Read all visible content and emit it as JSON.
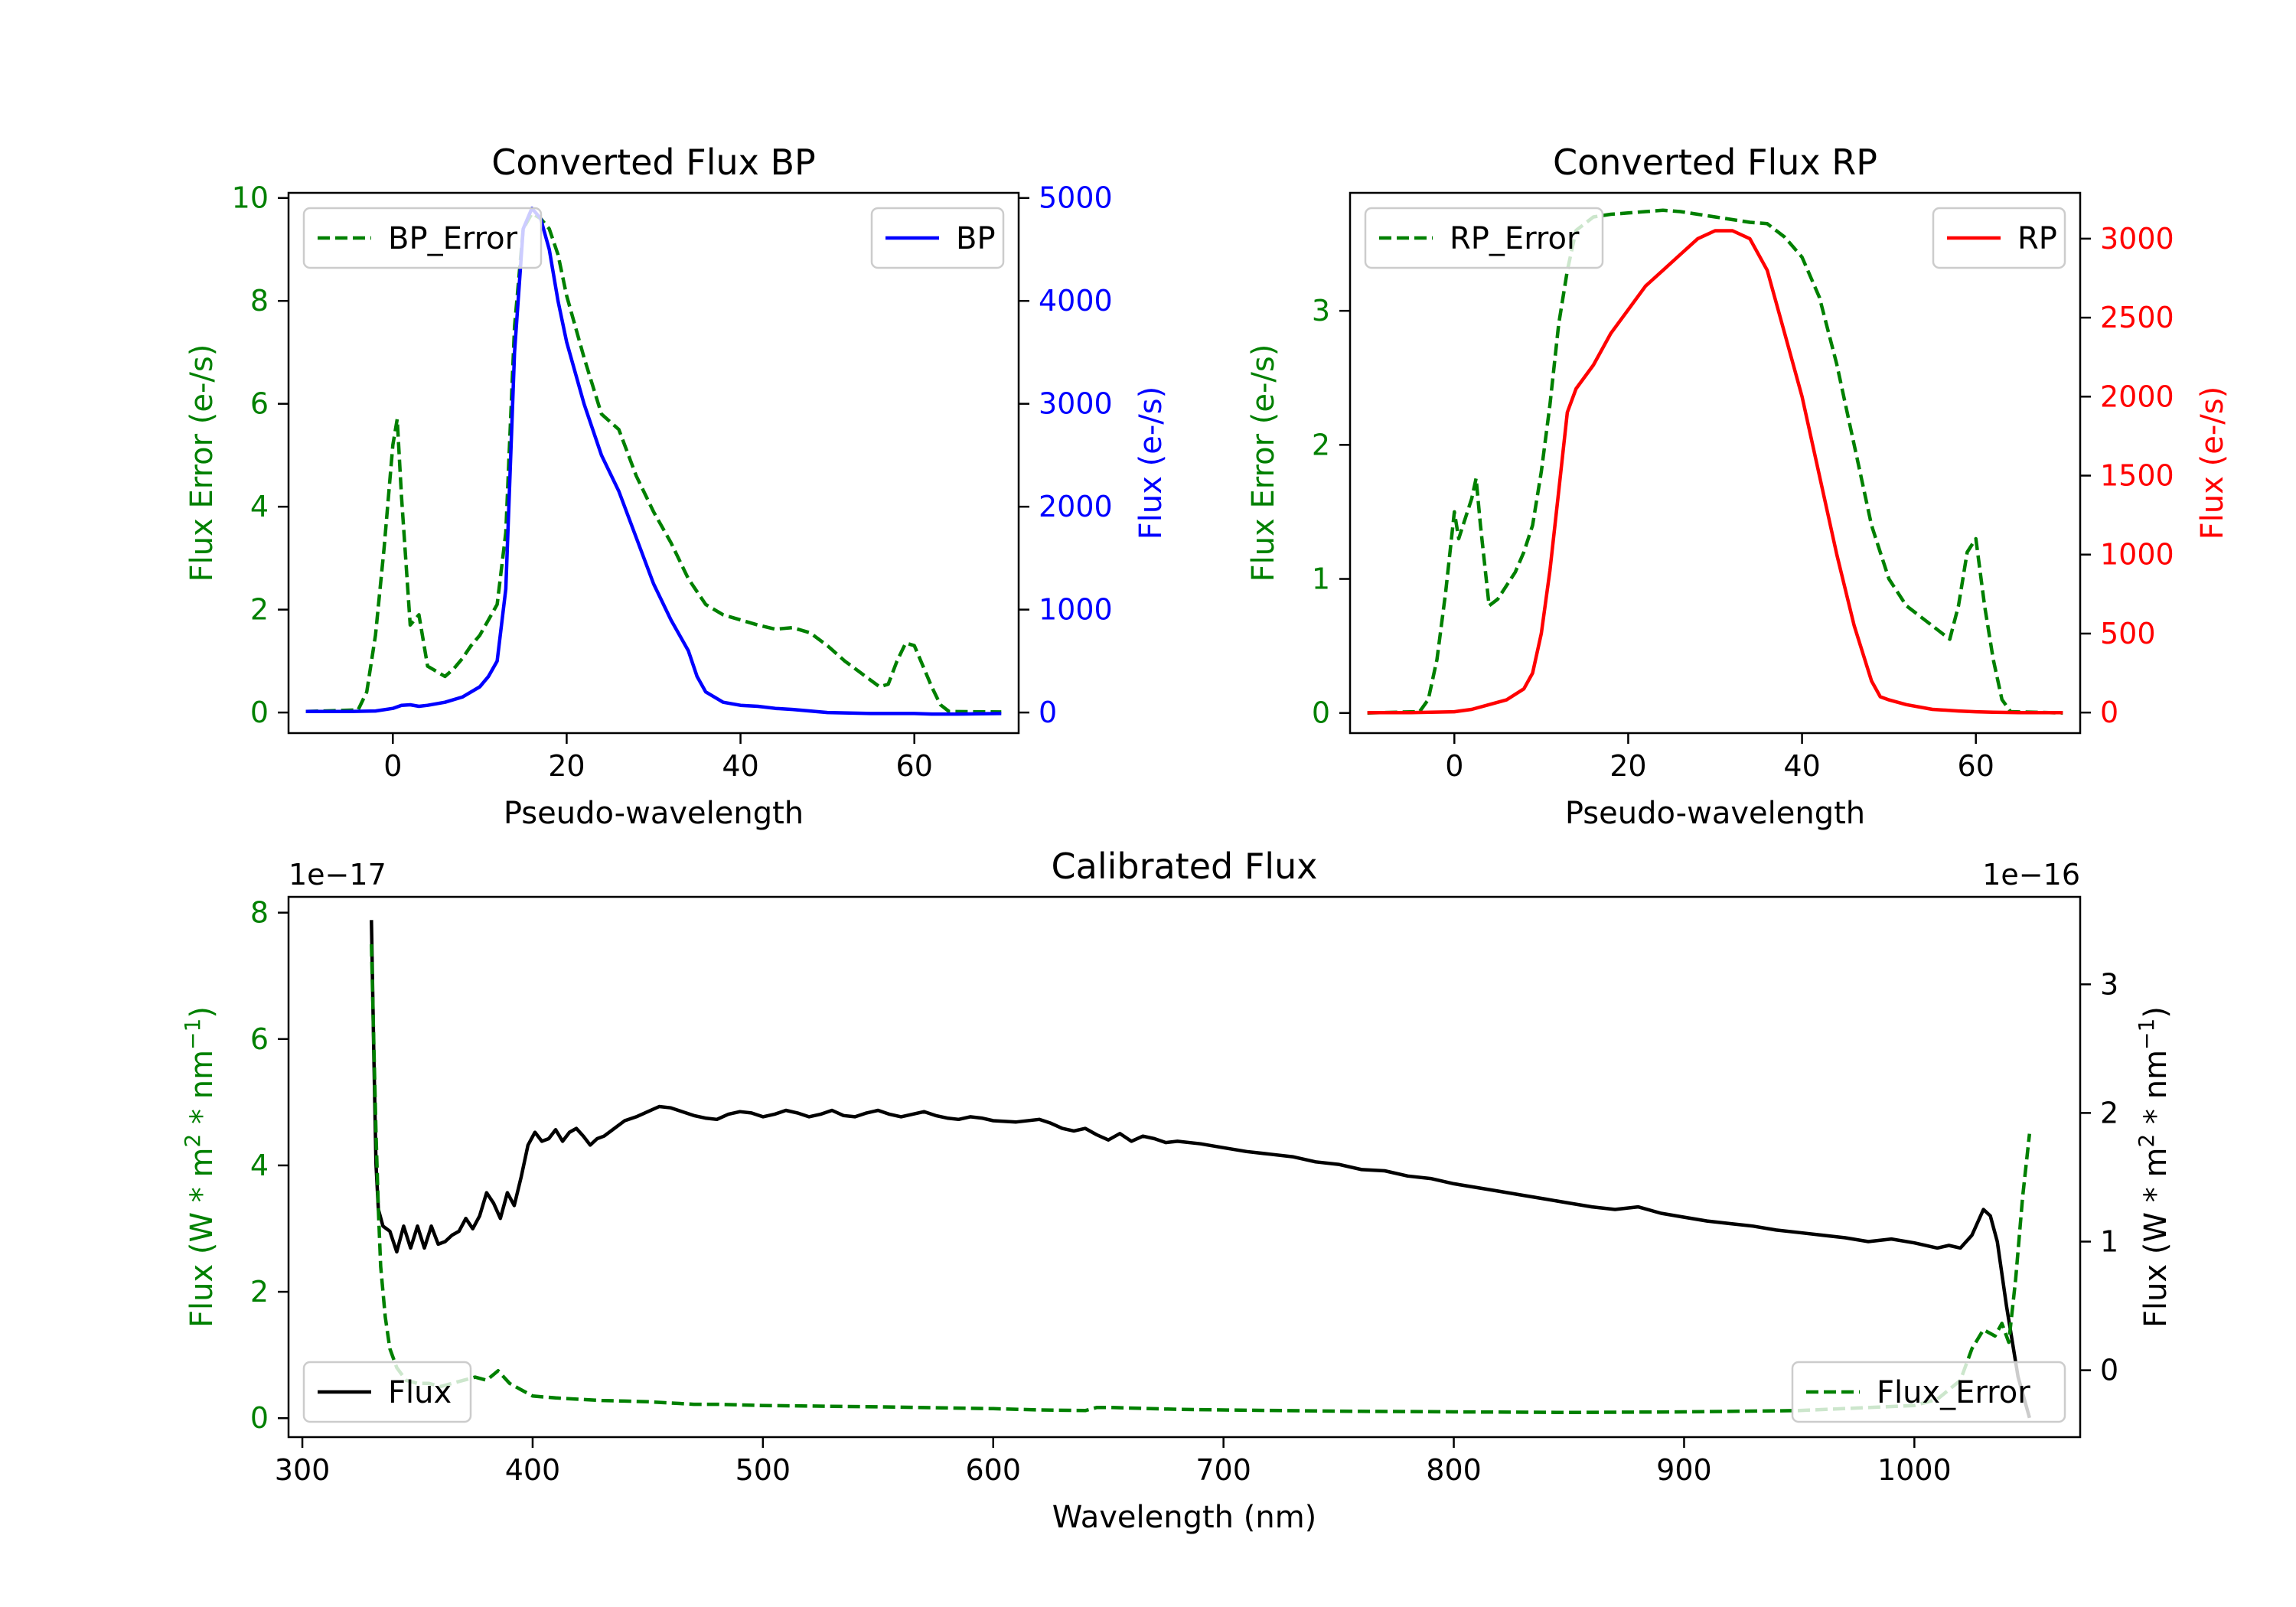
{
  "chart_data": [
    {
      "id": "bp",
      "type": "line",
      "title": "Converted Flux BP",
      "xlabel": "Pseudo-wavelength",
      "xlim": [
        -12,
        72
      ],
      "xticks": [
        0,
        20,
        40,
        60
      ],
      "left_axis": {
        "label": "Flux Error (e-/s)",
        "color": "#008000",
        "ylim": [
          -0.4,
          10.1
        ],
        "ticks": [
          0,
          2,
          4,
          6,
          8,
          10
        ]
      },
      "right_axis": {
        "label": "Flux (e-/s)",
        "color": "#0000ff",
        "ylim": [
          -200,
          5050
        ],
        "ticks": [
          0,
          1000,
          2000,
          3000,
          4000,
          5000
        ]
      },
      "series": [
        {
          "name": "BP_Error",
          "axis": "left",
          "color": "#008000",
          "style": "dashed",
          "x": [
            -10,
            -4,
            -3,
            -2,
            -1,
            0,
            0.5,
            1,
            2,
            3,
            4,
            5,
            6,
            7,
            8,
            9,
            10,
            11,
            12,
            13,
            14,
            15,
            16,
            17,
            18,
            19,
            20,
            22,
            24,
            26,
            28,
            30,
            32,
            34,
            36,
            38,
            40,
            42,
            44,
            46,
            48,
            50,
            52,
            54,
            56,
            57,
            58,
            59,
            60,
            61,
            62,
            63,
            64,
            70
          ],
          "y": [
            0.02,
            0.05,
            0.4,
            1.5,
            3.2,
            5.2,
            5.7,
            4.2,
            1.7,
            1.9,
            0.9,
            0.8,
            0.7,
            0.85,
            1.05,
            1.3,
            1.5,
            1.8,
            2.1,
            3.5,
            7.5,
            9.4,
            9.7,
            9.6,
            9.4,
            8.9,
            8.1,
            6.9,
            5.8,
            5.5,
            4.6,
            3.9,
            3.3,
            2.6,
            2.1,
            1.9,
            1.8,
            1.7,
            1.62,
            1.65,
            1.55,
            1.3,
            1.0,
            0.75,
            0.5,
            0.55,
            1.0,
            1.35,
            1.3,
            0.9,
            0.5,
            0.15,
            0.02,
            0.01
          ]
        },
        {
          "name": "BP",
          "axis": "right",
          "color": "#0000ff",
          "style": "solid",
          "x": [
            -10,
            -5,
            -2,
            0,
            1,
            2,
            3,
            4,
            6,
            8,
            10,
            11,
            12,
            13,
            14,
            15,
            16,
            17,
            18,
            19,
            20,
            22,
            24,
            26,
            28,
            30,
            32,
            34,
            35,
            36,
            38,
            40,
            42,
            44,
            46,
            48,
            50,
            55,
            60,
            62,
            65,
            70
          ],
          "y": [
            10,
            10,
            15,
            40,
            70,
            75,
            60,
            70,
            100,
            150,
            250,
            350,
            500,
            1200,
            3500,
            4700,
            4900,
            4800,
            4500,
            4000,
            3600,
            3000,
            2500,
            2150,
            1700,
            1250,
            900,
            600,
            350,
            200,
            100,
            70,
            60,
            40,
            30,
            15,
            0,
            -10,
            -10,
            -15,
            -15,
            -10
          ]
        }
      ],
      "legend": [
        {
          "label": "BP_Error",
          "position": "upper-left"
        },
        {
          "label": "BP",
          "position": "upper-right"
        }
      ]
    },
    {
      "id": "rp",
      "type": "line",
      "title": "Converted Flux RP",
      "xlabel": "Pseudo-wavelength",
      "xlim": [
        -12,
        72
      ],
      "xticks": [
        0,
        20,
        40,
        60
      ],
      "left_axis": {
        "label": "Flux Error (e-/s)",
        "color": "#008000",
        "ylim": [
          -0.15,
          3.88
        ],
        "ticks": [
          0,
          1,
          2,
          3
        ]
      },
      "right_axis": {
        "label": "Flux (e-/s)",
        "color": "#ff0000",
        "ylim": [
          -130,
          3290
        ],
        "ticks": [
          0,
          500,
          1000,
          1500,
          2000,
          2500,
          3000
        ]
      },
      "series": [
        {
          "name": "RP_Error",
          "axis": "left",
          "color": "#008000",
          "style": "dashed",
          "x": [
            -10,
            -4,
            -3,
            -2,
            -1,
            0,
            0.5,
            1,
            2,
            2.5,
            3,
            4,
            5,
            6,
            7,
            8,
            9,
            10,
            11,
            12,
            13,
            14,
            16,
            18,
            20,
            22,
            24,
            26,
            28,
            30,
            32,
            34,
            36,
            38,
            40,
            42,
            44,
            46,
            48,
            50,
            52,
            54,
            56,
            57,
            58,
            59,
            60,
            61,
            62,
            63,
            64,
            70
          ],
          "y": [
            0.0,
            0.01,
            0.1,
            0.4,
            0.9,
            1.5,
            1.3,
            1.4,
            1.6,
            1.75,
            1.4,
            0.8,
            0.85,
            0.95,
            1.05,
            1.2,
            1.4,
            1.8,
            2.3,
            2.9,
            3.3,
            3.6,
            3.7,
            3.72,
            3.73,
            3.74,
            3.75,
            3.74,
            3.72,
            3.7,
            3.68,
            3.66,
            3.65,
            3.55,
            3.4,
            3.1,
            2.6,
            2.0,
            1.4,
            1.0,
            0.8,
            0.7,
            0.6,
            0.55,
            0.8,
            1.2,
            1.3,
            0.8,
            0.4,
            0.1,
            0.01,
            0.0
          ]
        },
        {
          "name": "RP",
          "axis": "right",
          "color": "#ff0000",
          "style": "solid",
          "x": [
            -10,
            -5,
            0,
            2,
            4,
            6,
            8,
            9,
            10,
            11,
            12,
            13,
            14,
            16,
            18,
            20,
            22,
            24,
            26,
            28,
            30,
            32,
            34,
            36,
            38,
            40,
            42,
            44,
            46,
            48,
            49,
            50,
            52,
            55,
            58,
            60,
            62,
            65,
            70
          ],
          "y": [
            0,
            0,
            5,
            20,
            50,
            80,
            150,
            250,
            500,
            900,
            1400,
            1900,
            2050,
            2200,
            2400,
            2550,
            2700,
            2800,
            2900,
            3000,
            3050,
            3050,
            3000,
            2800,
            2400,
            2000,
            1500,
            1000,
            550,
            200,
            100,
            80,
            50,
            20,
            10,
            5,
            2,
            0,
            0
          ]
        }
      ],
      "legend": [
        {
          "label": "RP_Error",
          "position": "upper-left"
        },
        {
          "label": "RP",
          "position": "upper-right"
        }
      ]
    },
    {
      "id": "cal",
      "type": "line",
      "title": "Calibrated Flux",
      "xlabel": "Wavelength (nm)",
      "xlim": [
        294,
        1072
      ],
      "xticks": [
        300,
        400,
        500,
        600,
        700,
        800,
        900,
        1000
      ],
      "left_axis": {
        "label": "Flux (W * m^2 * nm^-1)",
        "color": "#008000",
        "ylim": [
          -0.3,
          8.25
        ],
        "ticks": [
          0,
          2,
          4,
          6,
          8
        ],
        "offset_text": "1e−17"
      },
      "right_axis": {
        "label": "Flux (W * m^2 * nm^-1)",
        "color": "#000000",
        "ylim": [
          -0.52,
          3.68
        ],
        "ticks": [
          0,
          1,
          2,
          3
        ],
        "offset_text": "1e−16"
      },
      "series": [
        {
          "name": "Flux",
          "axis": "right",
          "color": "#000000",
          "style": "solid",
          "x": [
            330,
            331,
            332,
            333,
            335,
            338,
            341,
            344,
            347,
            350,
            353,
            356,
            359,
            362,
            365,
            368,
            371,
            374,
            377,
            380,
            383,
            386,
            389,
            392,
            395,
            398,
            401,
            404,
            407,
            410,
            413,
            416,
            419,
            422,
            425,
            428,
            431,
            434,
            437,
            440,
            445,
            450,
            455,
            460,
            465,
            470,
            475,
            480,
            485,
            490,
            495,
            500,
            505,
            510,
            515,
            520,
            525,
            530,
            535,
            540,
            545,
            550,
            555,
            560,
            565,
            570,
            575,
            580,
            585,
            590,
            595,
            600,
            610,
            620,
            625,
            630,
            635,
            640,
            645,
            650,
            655,
            660,
            665,
            670,
            675,
            680,
            690,
            700,
            710,
            720,
            730,
            740,
            750,
            760,
            770,
            780,
            790,
            800,
            810,
            820,
            830,
            840,
            850,
            860,
            870,
            880,
            890,
            900,
            910,
            920,
            930,
            940,
            950,
            960,
            970,
            980,
            990,
            1000,
            1010,
            1015,
            1020,
            1025,
            1030,
            1033,
            1036,
            1040,
            1045,
            1050
          ],
          "y": [
            3.5,
            2.5,
            1.6,
            1.25,
            1.12,
            1.08,
            0.92,
            1.12,
            0.95,
            1.12,
            0.95,
            1.12,
            0.98,
            1.0,
            1.05,
            1.08,
            1.18,
            1.1,
            1.2,
            1.38,
            1.3,
            1.18,
            1.38,
            1.28,
            1.5,
            1.75,
            1.85,
            1.78,
            1.8,
            1.87,
            1.78,
            1.85,
            1.88,
            1.82,
            1.75,
            1.8,
            1.82,
            1.86,
            1.9,
            1.94,
            1.97,
            2.01,
            2.05,
            2.04,
            2.01,
            1.98,
            1.96,
            1.95,
            1.99,
            2.01,
            2.0,
            1.97,
            1.99,
            2.02,
            2.0,
            1.97,
            1.99,
            2.02,
            1.98,
            1.97,
            2.0,
            2.02,
            1.99,
            1.97,
            1.99,
            2.01,
            1.98,
            1.96,
            1.95,
            1.97,
            1.96,
            1.94,
            1.93,
            1.95,
            1.92,
            1.88,
            1.86,
            1.88,
            1.83,
            1.79,
            1.84,
            1.78,
            1.82,
            1.8,
            1.77,
            1.78,
            1.76,
            1.73,
            1.7,
            1.68,
            1.66,
            1.62,
            1.6,
            1.56,
            1.55,
            1.51,
            1.49,
            1.45,
            1.42,
            1.39,
            1.36,
            1.33,
            1.3,
            1.27,
            1.25,
            1.27,
            1.22,
            1.19,
            1.16,
            1.14,
            1.12,
            1.09,
            1.07,
            1.05,
            1.03,
            1.0,
            1.02,
            0.99,
            0.95,
            0.97,
            0.95,
            1.05,
            1.25,
            1.2,
            1.0,
            0.5,
            -0.05,
            -0.37
          ]
        },
        {
          "name": "Flux_Error",
          "axis": "left",
          "color": "#008000",
          "style": "dashed",
          "x": [
            330,
            331,
            332,
            333,
            334,
            336,
            338,
            341,
            345,
            350,
            355,
            360,
            365,
            370,
            375,
            380,
            385,
            390,
            395,
            400,
            410,
            420,
            430,
            440,
            450,
            460,
            470,
            480,
            500,
            550,
            600,
            620,
            640,
            645,
            650,
            680,
            700,
            750,
            800,
            850,
            900,
            950,
            1000,
            1010,
            1020,
            1025,
            1030,
            1035,
            1038,
            1041,
            1044,
            1047,
            1050
          ],
          "y": [
            7.5,
            6.0,
            4.5,
            3.3,
            2.4,
            1.6,
            1.1,
            0.8,
            0.6,
            0.55,
            0.55,
            0.5,
            0.55,
            0.6,
            0.65,
            0.6,
            0.75,
            0.55,
            0.45,
            0.35,
            0.32,
            0.3,
            0.28,
            0.27,
            0.26,
            0.24,
            0.22,
            0.22,
            0.2,
            0.18,
            0.15,
            0.13,
            0.12,
            0.17,
            0.17,
            0.14,
            0.13,
            0.11,
            0.1,
            0.09,
            0.1,
            0.12,
            0.2,
            0.3,
            0.6,
            1.1,
            1.4,
            1.3,
            1.5,
            1.2,
            2.2,
            3.5,
            4.5
          ]
        }
      ],
      "legend": [
        {
          "label": "Flux",
          "position": "lower-left"
        },
        {
          "label": "Flux_Error",
          "position": "lower-right"
        }
      ]
    }
  ]
}
